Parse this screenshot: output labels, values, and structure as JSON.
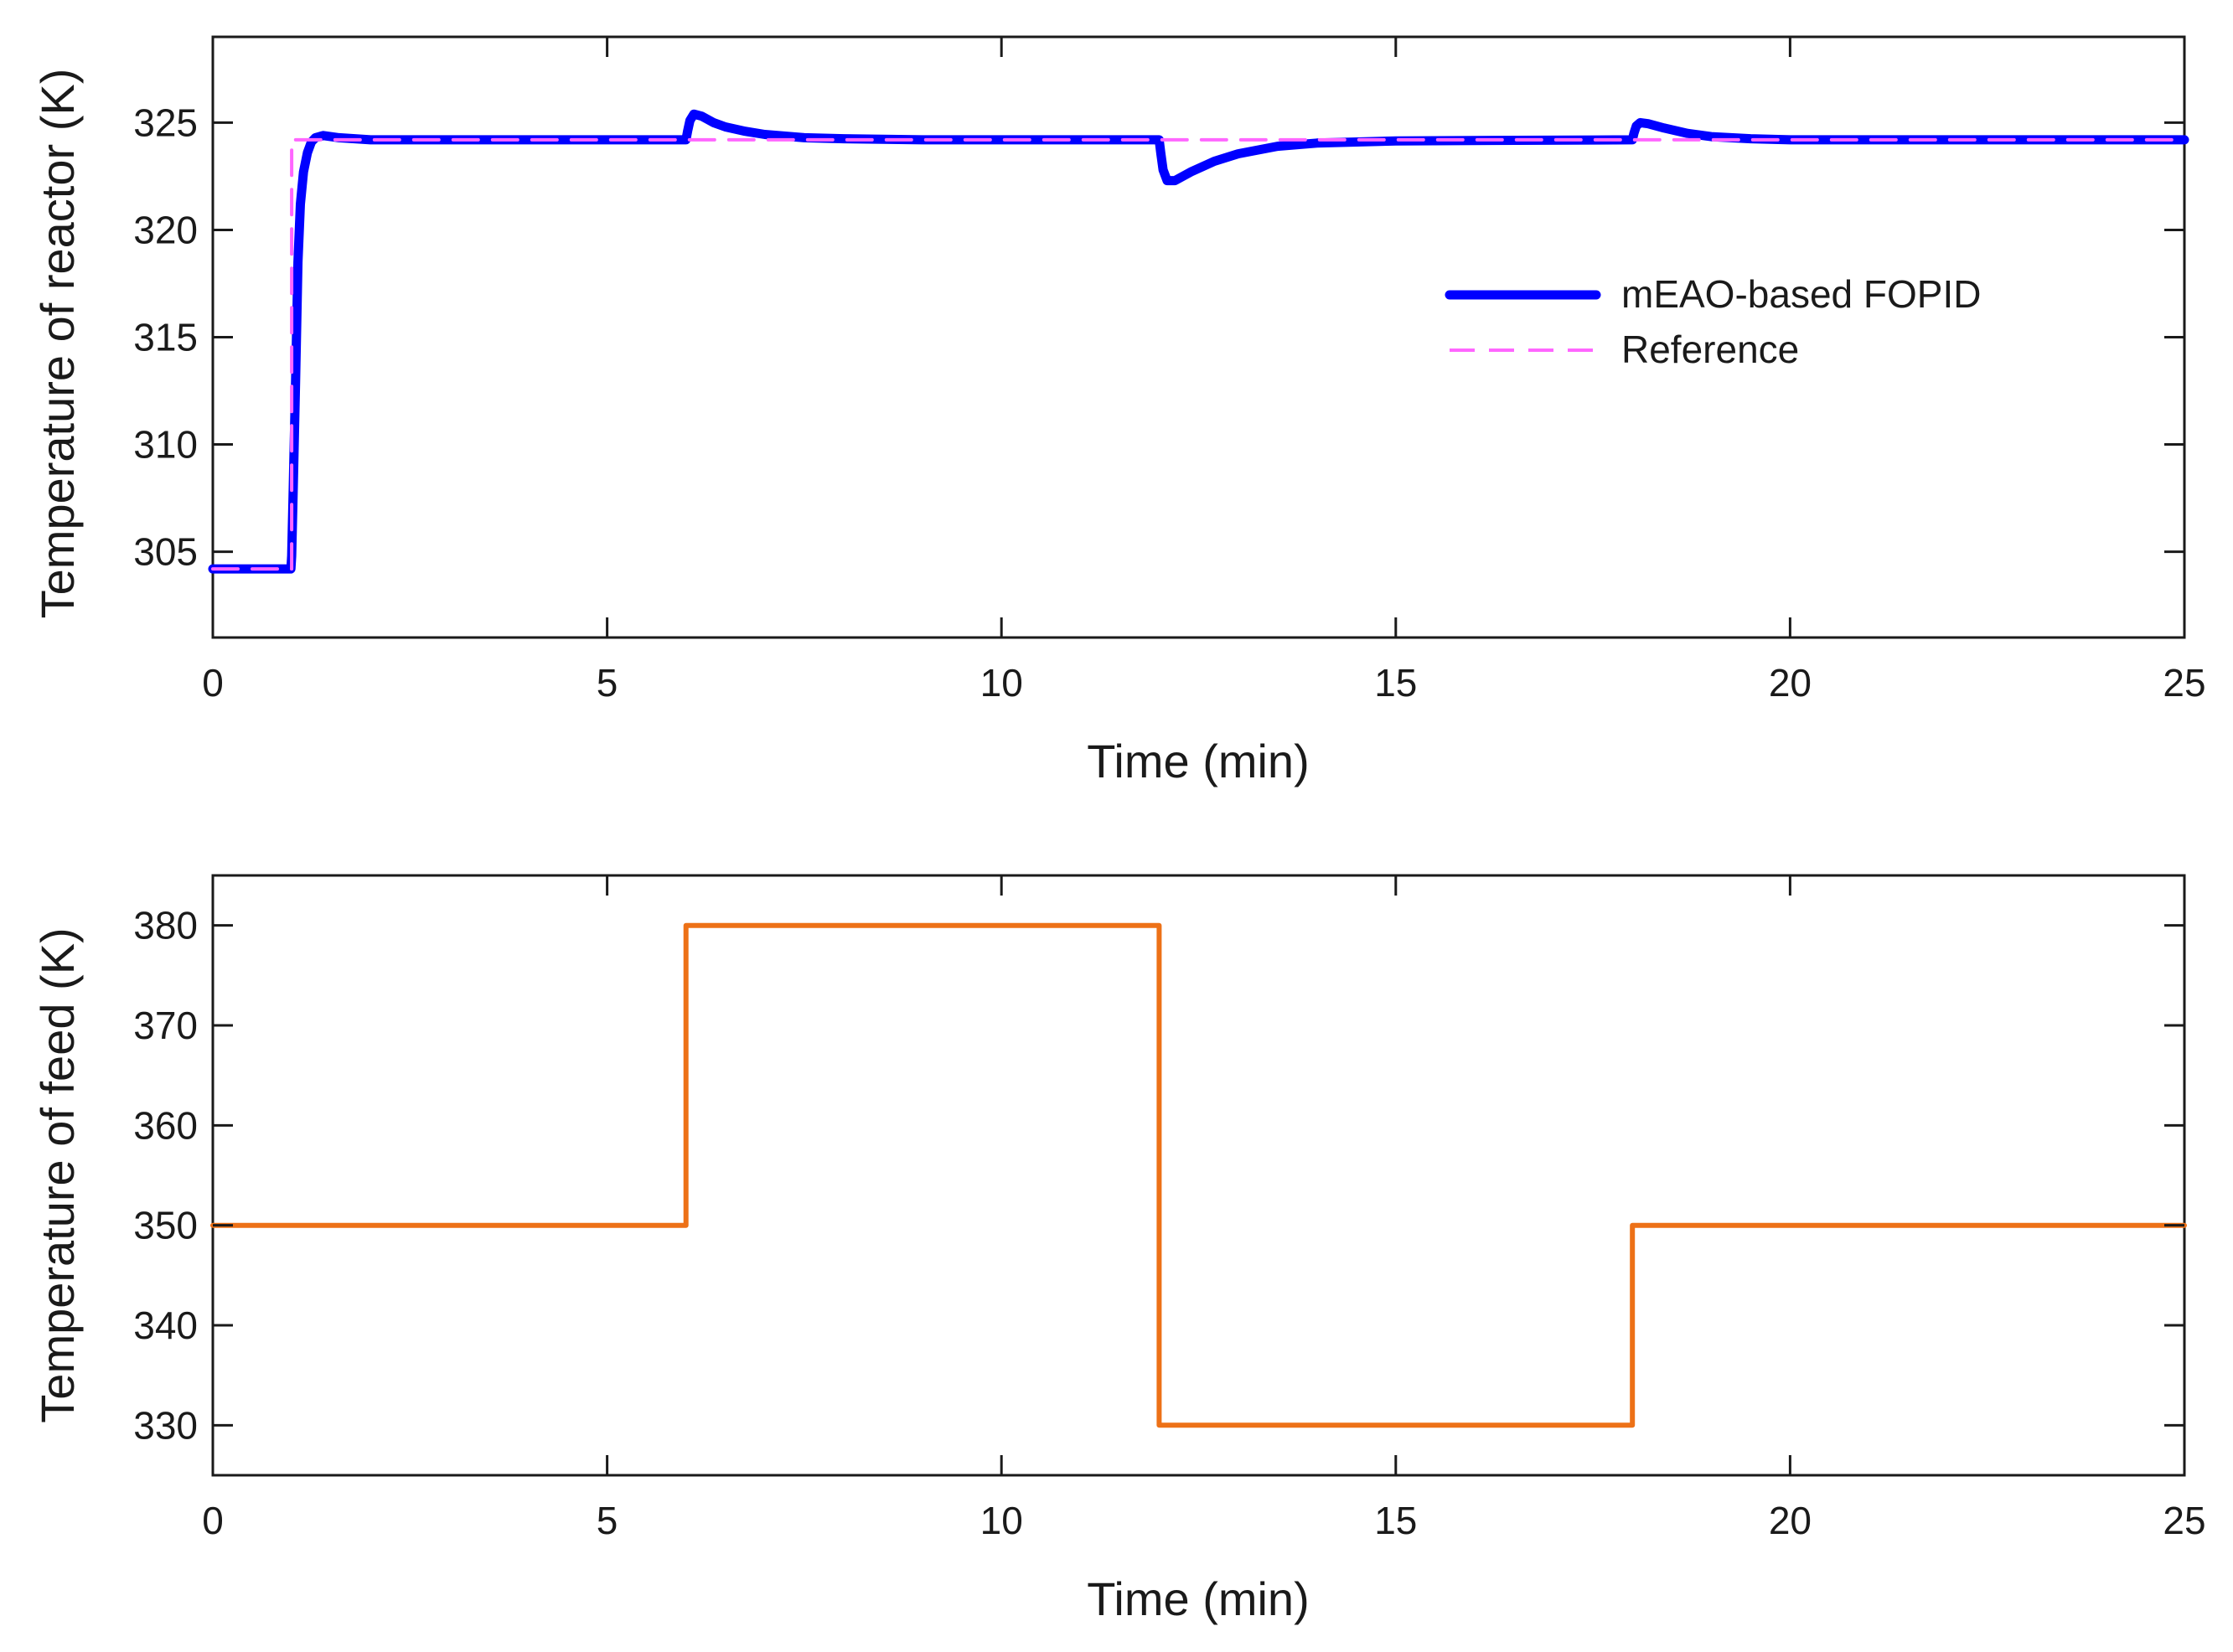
{
  "chart_data": [
    {
      "type": "line",
      "xlabel": "Time (min)",
      "ylabel": "Temperature of reactor (K)",
      "xlim": [
        0,
        25
      ],
      "ylim": [
        301,
        329
      ],
      "xticks": [
        0,
        5,
        10,
        15,
        20,
        25
      ],
      "yticks": [
        305,
        310,
        315,
        320,
        325
      ],
      "grid": false,
      "legend_position": "center-right",
      "series": [
        {
          "name": "mEAO-based FOPID",
          "color": "#0000ff",
          "style": "solid",
          "x": [
            0,
            0.99,
            1.0,
            1.02,
            1.05,
            1.08,
            1.11,
            1.15,
            1.2,
            1.25,
            1.3,
            1.4,
            1.6,
            2.0,
            6.0,
            6.02,
            6.05,
            6.1,
            6.2,
            6.35,
            6.5,
            6.75,
            7.0,
            7.5,
            8.0,
            9.0,
            12.0,
            12.02,
            12.05,
            12.1,
            12.2,
            12.4,
            12.7,
            13.0,
            13.5,
            14.0,
            15.0,
            18.0,
            18.02,
            18.05,
            18.1,
            18.2,
            18.4,
            18.7,
            19.0,
            19.5,
            20.0,
            25.0
          ],
          "y": [
            304.2,
            304.2,
            304.8,
            308.0,
            313.0,
            318.5,
            321.2,
            322.7,
            323.6,
            324.1,
            324.3,
            324.4,
            324.3,
            324.2,
            324.2,
            324.6,
            325.1,
            325.4,
            325.3,
            325.0,
            324.8,
            324.6,
            324.45,
            324.3,
            324.25,
            324.2,
            324.2,
            323.6,
            322.8,
            322.3,
            322.3,
            322.7,
            323.2,
            323.55,
            323.9,
            324.05,
            324.15,
            324.2,
            324.5,
            324.85,
            325.0,
            324.95,
            324.75,
            324.5,
            324.35,
            324.25,
            324.2,
            324.2
          ]
        },
        {
          "name": "Reference",
          "color": "#ff66ff",
          "style": "dashed",
          "x": [
            0,
            1.0,
            1.0,
            25
          ],
          "y": [
            304.2,
            304.2,
            324.2,
            324.2
          ]
        }
      ]
    },
    {
      "type": "line",
      "xlabel": "Time (min)",
      "ylabel": "Temperature of feed (K)",
      "xlim": [
        0,
        25
      ],
      "ylim": [
        325,
        385
      ],
      "xticks": [
        0,
        5,
        10,
        15,
        20,
        25
      ],
      "yticks": [
        330,
        340,
        350,
        360,
        370,
        380
      ],
      "grid": false,
      "series": [
        {
          "color": "#ed7117",
          "style": "solid",
          "x": [
            0,
            6,
            6,
            12,
            12,
            18,
            18,
            25
          ],
          "y": [
            350,
            350,
            380,
            380,
            330,
            330,
            350,
            350
          ]
        }
      ]
    }
  ]
}
